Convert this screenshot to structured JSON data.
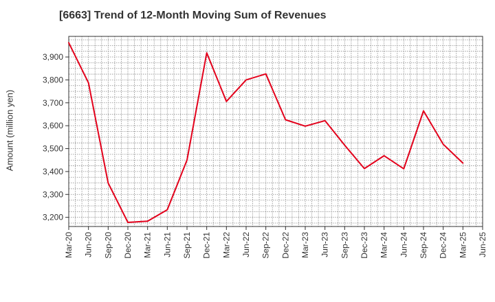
{
  "chart_data": {
    "type": "line",
    "title": "[6663]  Trend of 12-Month Moving Sum of Revenues",
    "xlabel": "",
    "ylabel": "Amount (million yen)",
    "categories": [
      "Mar-20",
      "Jun-20",
      "Sep-20",
      "Dec-20",
      "Mar-21",
      "Jun-21",
      "Sep-21",
      "Dec-21",
      "Mar-22",
      "Jun-22",
      "Sep-22",
      "Dec-22",
      "Mar-23",
      "Jun-23",
      "Sep-23",
      "Dec-23",
      "Mar-24",
      "Jun-24",
      "Sep-24",
      "Dec-24",
      "Mar-25",
      "Jun-25"
    ],
    "series": [
      {
        "color": "#e3001b",
        "values": [
          3962,
          3787,
          3350,
          3178,
          3183,
          3233,
          3450,
          3918,
          3706,
          3800,
          3826,
          3626,
          3598,
          3622,
          3515,
          3413,
          3469,
          3412,
          3665,
          3519,
          3437,
          null
        ]
      }
    ],
    "ylim": [
      3160,
      3990
    ],
    "yticks": [
      3200,
      3300,
      3400,
      3500,
      3600,
      3700,
      3800,
      3900
    ],
    "ytick_labels": [
      "3,200",
      "3,300",
      "3,400",
      "3,500",
      "3,600",
      "3,700",
      "3,800",
      "3,900"
    ],
    "grid": true
  }
}
